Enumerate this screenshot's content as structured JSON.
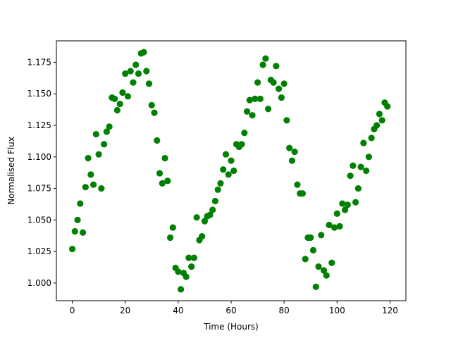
{
  "chart_data": {
    "type": "scatter",
    "xlabel": "Time (Hours)",
    "ylabel": "Normalised Flux",
    "xlim": [
      -6,
      126
    ],
    "ylim": [
      0.986,
      1.192
    ],
    "xticks": [
      0,
      20,
      40,
      60,
      80,
      100,
      120
    ],
    "yticks": [
      1.0,
      1.025,
      1.05,
      1.075,
      1.1,
      1.125,
      1.15,
      1.175
    ],
    "grid": false,
    "marker_color": "#008000",
    "series": [
      {
        "x": [
          0,
          1,
          2,
          3,
          4,
          5,
          6,
          7,
          8,
          9,
          10,
          11,
          12,
          13,
          14,
          15,
          16,
          17,
          18,
          19,
          20,
          21,
          22,
          23,
          24,
          25,
          26,
          27,
          28,
          29,
          30,
          31,
          32,
          33,
          34,
          35,
          36,
          37,
          38,
          39,
          40,
          41,
          42,
          43,
          44,
          45,
          46,
          47,
          48,
          49,
          50,
          51,
          52,
          53,
          54,
          55,
          56,
          57,
          58,
          59,
          60,
          61,
          62,
          63,
          64,
          65,
          66,
          67,
          68,
          69,
          70,
          71,
          72,
          73,
          74,
          75,
          76,
          77,
          78,
          79,
          80,
          81,
          82,
          83,
          84,
          85,
          86,
          87,
          88,
          89,
          90,
          91,
          92,
          93,
          94,
          95,
          96,
          97,
          98,
          99,
          100,
          101,
          102,
          103,
          104,
          105,
          106,
          107,
          108,
          109,
          110,
          111,
          112,
          113,
          114,
          115,
          116,
          117,
          118,
          119
        ],
        "y": [
          1.027,
          1.041,
          1.05,
          1.063,
          1.04,
          1.076,
          1.099,
          1.086,
          1.078,
          1.118,
          1.102,
          1.075,
          1.11,
          1.12,
          1.124,
          1.147,
          1.146,
          1.137,
          1.142,
          1.151,
          1.166,
          1.148,
          1.168,
          1.159,
          1.173,
          1.166,
          1.182,
          1.183,
          1.168,
          1.158,
          1.141,
          1.135,
          1.113,
          1.087,
          1.079,
          1.099,
          1.081,
          1.036,
          1.044,
          1.012,
          1.009,
          0.995,
          1.008,
          1.005,
          1.02,
          1.013,
          1.02,
          1.052,
          1.034,
          1.037,
          1.049,
          1.053,
          1.054,
          1.058,
          1.065,
          1.074,
          1.079,
          1.09,
          1.102,
          1.086,
          1.097,
          1.089,
          1.11,
          1.108,
          1.11,
          1.119,
          1.136,
          1.145,
          1.133,
          1.146,
          1.159,
          1.146,
          1.173,
          1.178,
          1.138,
          1.161,
          1.159,
          1.172,
          1.154,
          1.147,
          1.158,
          1.129,
          1.107,
          1.097,
          1.104,
          1.078,
          1.071,
          1.071,
          1.019,
          1.036,
          1.036,
          1.026,
          0.997,
          1.013,
          1.038,
          1.01,
          1.006,
          1.046,
          1.016,
          1.044,
          1.055,
          1.045,
          1.063,
          1.058,
          1.062,
          1.085,
          1.093,
          1.064,
          1.075,
          1.092,
          1.111,
          1.089,
          1.1,
          1.115,
          1.122,
          1.125,
          1.134,
          1.129,
          1.143,
          1.14
        ]
      }
    ]
  }
}
